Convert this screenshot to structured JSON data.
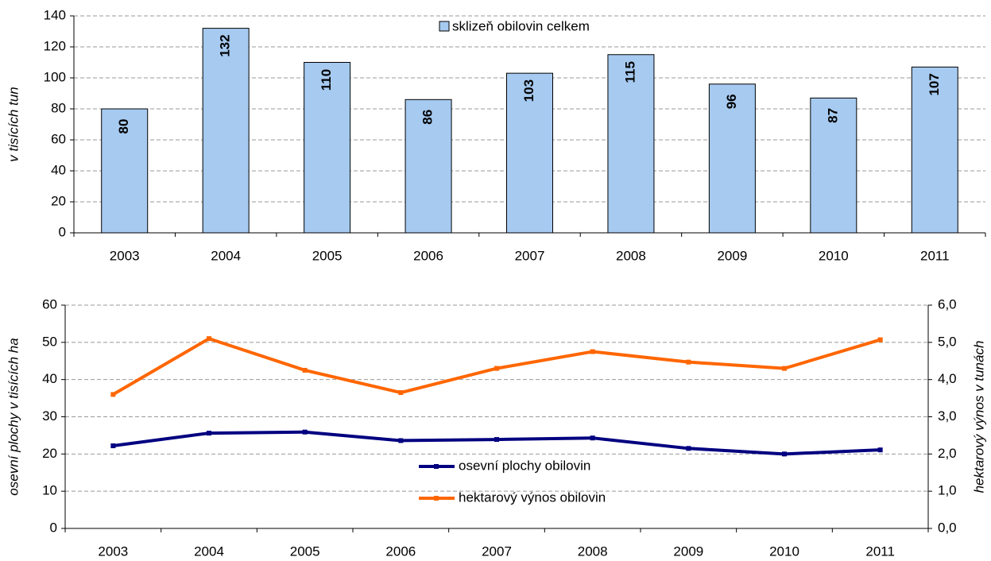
{
  "chart_data": [
    {
      "type": "bar",
      "y_label": "v tisících tun",
      "categories": [
        "2003",
        "2004",
        "2005",
        "2006",
        "2007",
        "2008",
        "2009",
        "2010",
        "2011"
      ],
      "series": [
        {
          "name": "sklizeň obilovin celkem",
          "color": "#a6caf0",
          "values": [
            80,
            132,
            110,
            86,
            103,
            115,
            96,
            87,
            107
          ]
        }
      ],
      "ylim": [
        0,
        140
      ],
      "yticks": [
        0,
        20,
        40,
        60,
        80,
        100,
        120,
        140
      ],
      "grid": true
    },
    {
      "type": "line",
      "y_label": "osevní plochy v tisících ha",
      "y2_label": "hektarový výnos v tunách",
      "categories": [
        "2003",
        "2004",
        "2005",
        "2006",
        "2007",
        "2008",
        "2009",
        "2010",
        "2011"
      ],
      "series": [
        {
          "name": "osevní plochy obilovin",
          "color": "#000080",
          "values": [
            22.2,
            25.6,
            25.9,
            23.6,
            23.9,
            24.3,
            21.5,
            20.0,
            21.1
          ]
        },
        {
          "name": "hektarový výnos obilovin",
          "color": "#ff6600",
          "axis": "y2",
          "values": [
            3.6,
            5.1,
            4.25,
            3.65,
            4.3,
            4.75,
            4.47,
            4.3,
            5.07
          ]
        }
      ],
      "ylim": [
        0,
        60
      ],
      "yticks": [
        0,
        10,
        20,
        30,
        40,
        50,
        60
      ],
      "y2lim": [
        0,
        6
      ],
      "y2ticks": [
        {
          "value": 0,
          "label": "0,0"
        },
        {
          "value": 1,
          "label": "1,0"
        },
        {
          "value": 2,
          "label": "2,0"
        },
        {
          "value": 3,
          "label": "3,0"
        },
        {
          "value": 4,
          "label": "4,0"
        },
        {
          "value": 5,
          "label": "5,0"
        },
        {
          "value": 6,
          "label": "6,0"
        }
      ],
      "grid": true
    }
  ]
}
